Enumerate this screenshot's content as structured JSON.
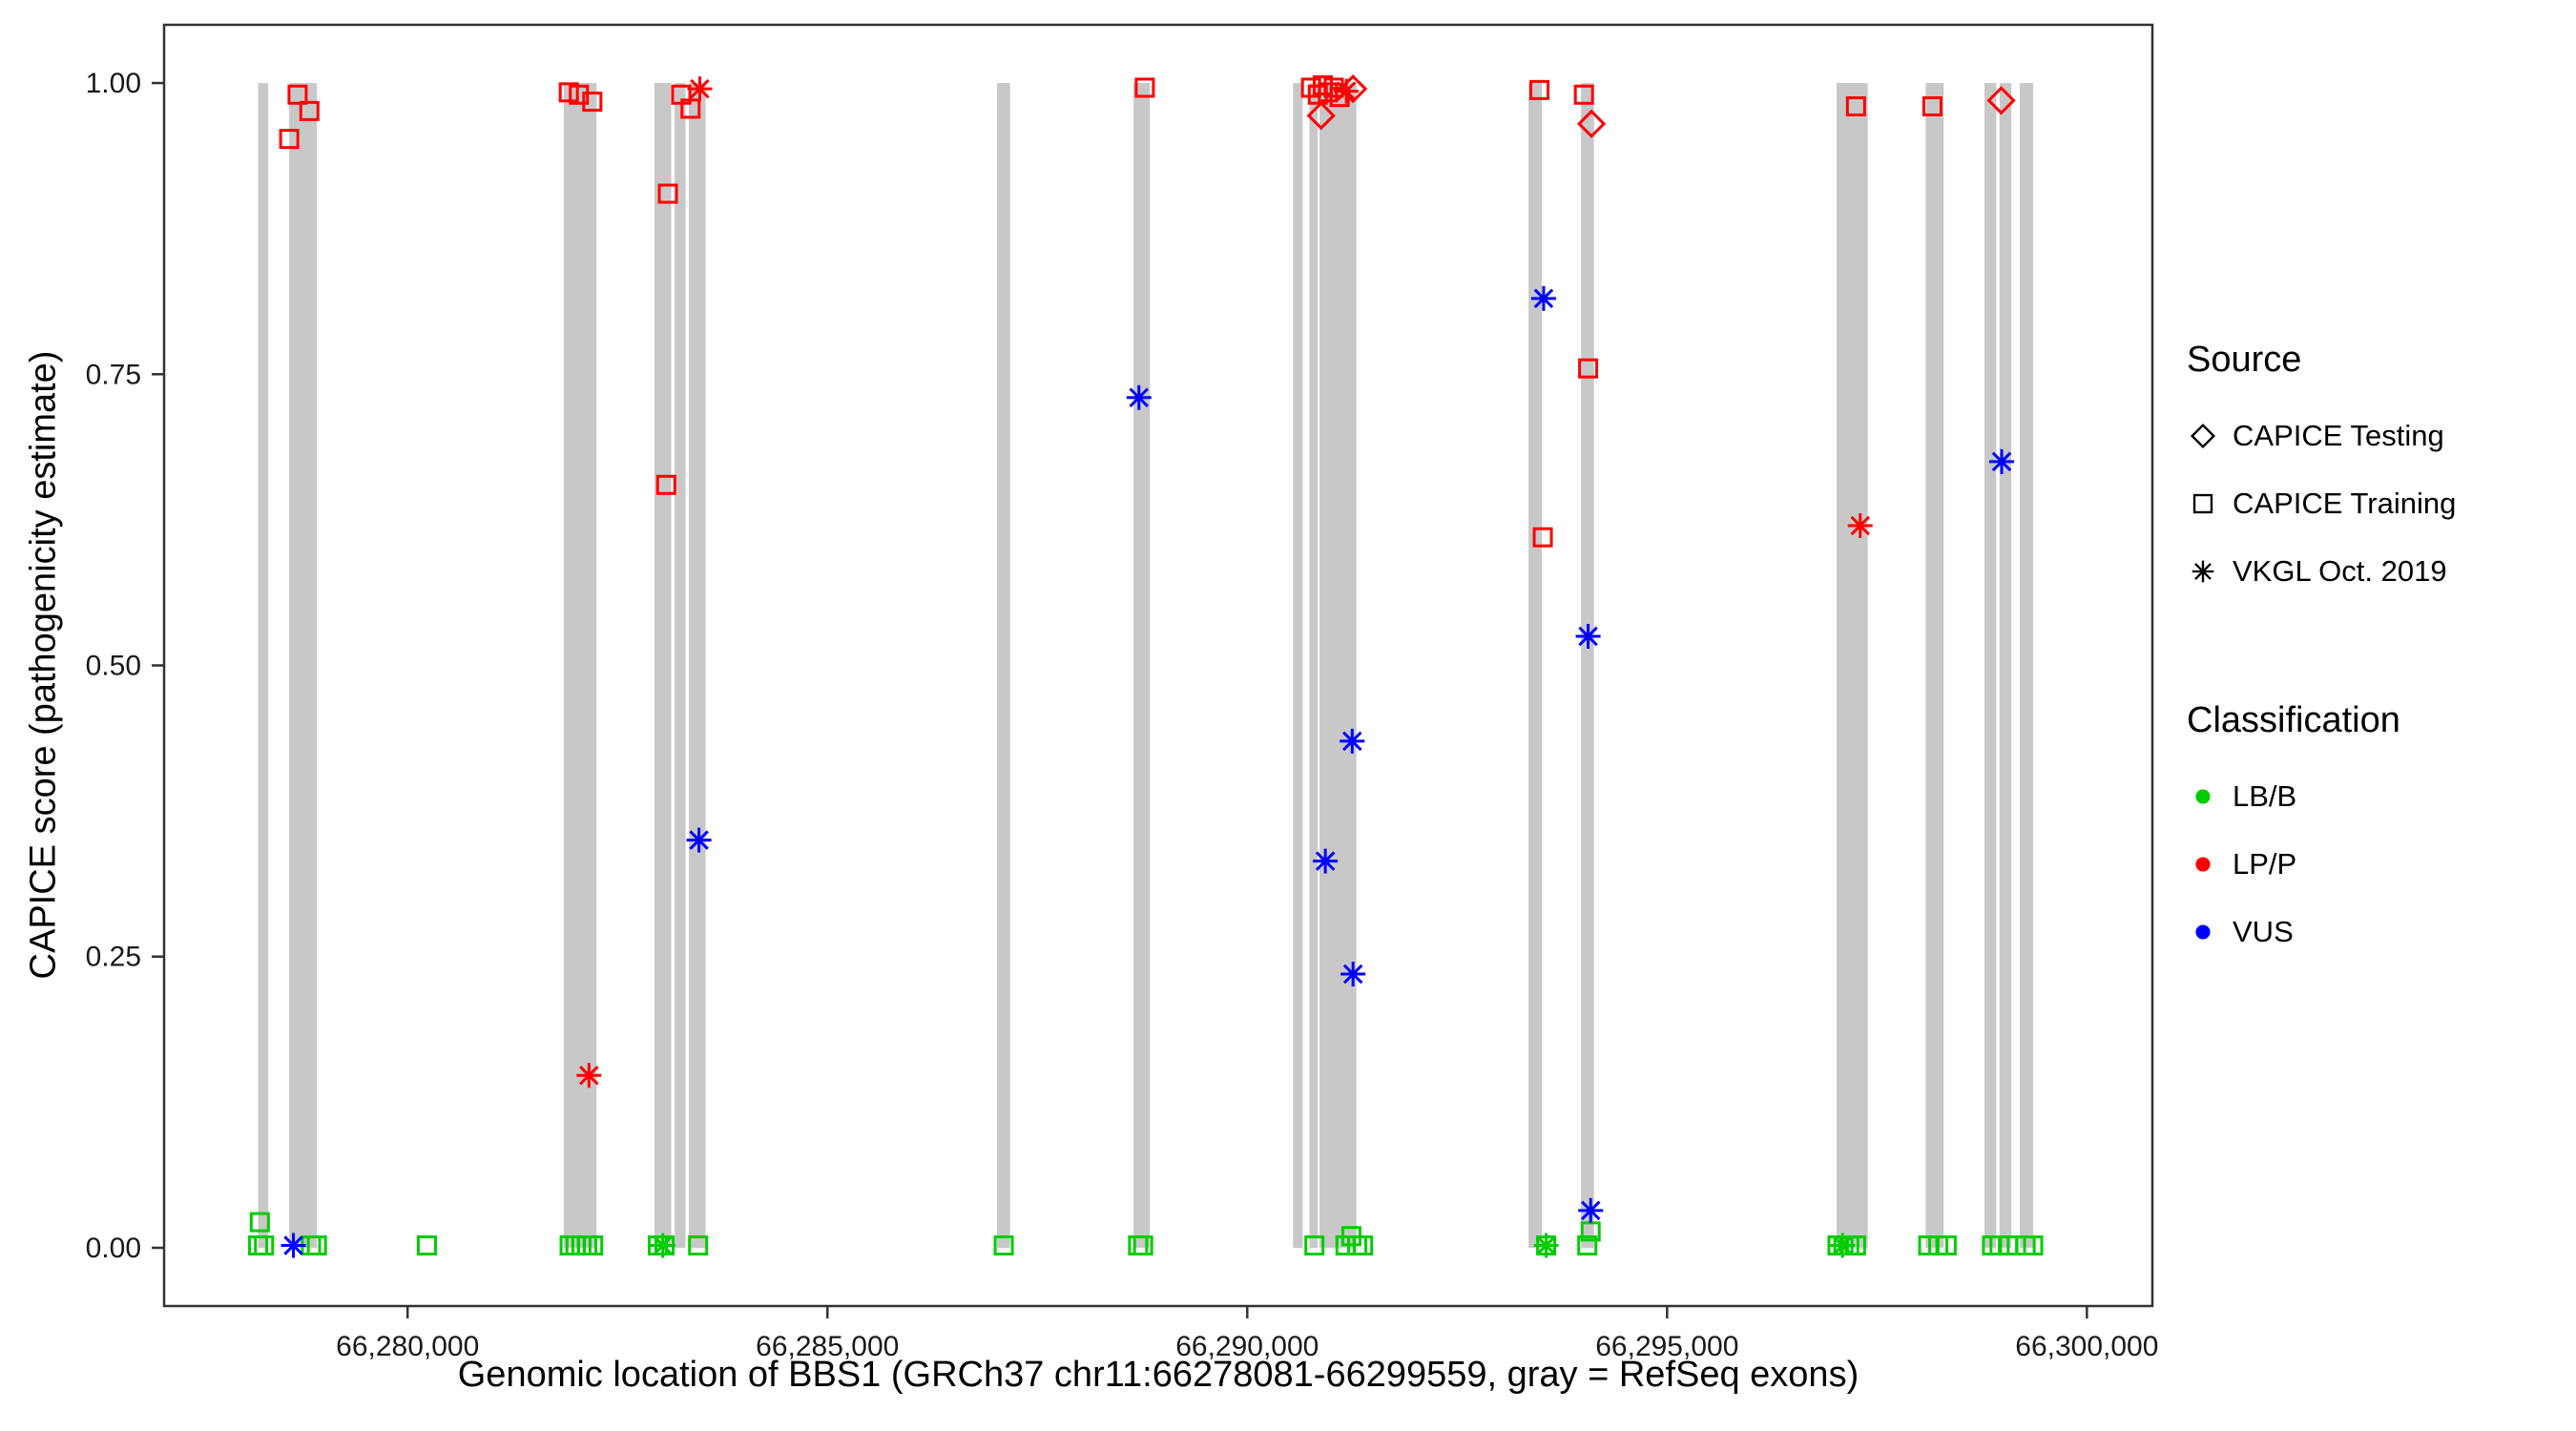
{
  "legend": {
    "source": {
      "title": "Source",
      "items": [
        {
          "label": "CAPICE Testing",
          "shape": "diamond"
        },
        {
          "label": "CAPICE Training",
          "shape": "square"
        },
        {
          "label": "VKGL Oct. 2019",
          "shape": "asterisk"
        }
      ]
    },
    "classification": {
      "title": "Classification",
      "items": [
        {
          "label": "LB/B",
          "color": "#00CD00"
        },
        {
          "label": "LP/P",
          "color": "#FF0000"
        },
        {
          "label": "VUS",
          "color": "#0000FF"
        }
      ]
    }
  },
  "style": {
    "exon_color": "#C8C8C8",
    "panel_border": "#333333",
    "tick_color": "#333333",
    "tick_label_color": "#1a1a1a",
    "background": "#FFFFFF"
  },
  "chart_data": {
    "type": "scatter",
    "title": "",
    "xlabel": "Genomic location of BBS1 (GRCh37 chr11:66278081-66299559, gray = RefSeq exons)",
    "ylabel": "CAPICE score (pathogenicity estimate)",
    "xlim": [
      66277100,
      66300780
    ],
    "ylim": [
      -0.05,
      1.05
    ],
    "x_ticks": [
      {
        "value": 66280000,
        "label": "66,280,000"
      },
      {
        "value": 66285000,
        "label": "66,285,000"
      },
      {
        "value": 66290000,
        "label": "66,290,000"
      },
      {
        "value": 66295000,
        "label": "66,295,000"
      },
      {
        "value": 66300000,
        "label": "66,300,000"
      }
    ],
    "y_ticks": [
      {
        "value": 0.0,
        "label": "0.00"
      },
      {
        "value": 0.25,
        "label": "0.25"
      },
      {
        "value": 0.5,
        "label": "0.50"
      },
      {
        "value": 0.75,
        "label": "0.75"
      },
      {
        "value": 1.0,
        "label": "1.00"
      }
    ],
    "exons_note": "gray rectangles span y=0 to y=1 and mark RefSeq exons",
    "exons": [
      [
        66278220,
        66278340
      ],
      [
        66278590,
        66278920
      ],
      [
        66281860,
        66282250
      ],
      [
        66282940,
        66283140
      ],
      [
        66283180,
        66283310
      ],
      [
        66283350,
        66283550
      ],
      [
        66287020,
        66287175
      ],
      [
        66288645,
        66288840
      ],
      [
        66290545,
        66290660
      ],
      [
        66290740,
        66290840
      ],
      [
        66290860,
        66291300
      ],
      [
        66293350,
        66293510
      ],
      [
        66293975,
        66294130
      ],
      [
        66297020,
        66297390
      ],
      [
        66298080,
        66298295
      ],
      [
        66298780,
        66298920
      ],
      [
        66298960,
        66299100
      ],
      [
        66299200,
        66299360
      ]
    ],
    "series": [
      {
        "name": "CAPICE Training - LB/B",
        "source": "CAPICE Training",
        "classification": "LB/B",
        "shape": "square",
        "color": "#00CD00",
        "points": [
          [
            66278240,
            0.022
          ],
          [
            66278220,
            0.002
          ],
          [
            66278290,
            0.002
          ],
          [
            66278850,
            0.002
          ],
          [
            66278920,
            0.002
          ],
          [
            66280230,
            0.002
          ],
          [
            66281930,
            0.002
          ],
          [
            66282000,
            0.002
          ],
          [
            66282070,
            0.002
          ],
          [
            66282140,
            0.002
          ],
          [
            66282210,
            0.002
          ],
          [
            66282980,
            0.002
          ],
          [
            66283060,
            0.002
          ],
          [
            66283460,
            0.002
          ],
          [
            66287100,
            0.002
          ],
          [
            66288700,
            0.002
          ],
          [
            66288760,
            0.002
          ],
          [
            66290800,
            0.002
          ],
          [
            66291170,
            0.002
          ],
          [
            66291240,
            0.01
          ],
          [
            66291310,
            0.002
          ],
          [
            66291380,
            0.002
          ],
          [
            66293560,
            0.002
          ],
          [
            66294050,
            0.002
          ],
          [
            66294090,
            0.014
          ],
          [
            66297030,
            0.002
          ],
          [
            66297100,
            0.002
          ],
          [
            66297170,
            0.002
          ],
          [
            66297250,
            0.002
          ],
          [
            66298110,
            0.002
          ],
          [
            66298230,
            0.002
          ],
          [
            66298330,
            0.002
          ],
          [
            66298870,
            0.002
          ],
          [
            66298960,
            0.002
          ],
          [
            66299060,
            0.002
          ],
          [
            66299270,
            0.002
          ],
          [
            66299360,
            0.002
          ]
        ]
      },
      {
        "name": "VKGL Oct. 2019 - LB/B",
        "source": "VKGL Oct. 2019",
        "classification": "LB/B",
        "shape": "asterisk",
        "color": "#00CD00",
        "points": [
          [
            66283040,
            0.002
          ],
          [
            66293560,
            0.002
          ],
          [
            66297090,
            0.002
          ]
        ]
      },
      {
        "name": "CAPICE Training - LP/P",
        "source": "CAPICE Training",
        "classification": "LP/P",
        "shape": "square",
        "color": "#FF0000",
        "points": [
          [
            66278590,
            0.952
          ],
          [
            66278690,
            0.99
          ],
          [
            66278830,
            0.976
          ],
          [
            66281920,
            0.992
          ],
          [
            66282040,
            0.99
          ],
          [
            66282200,
            0.984
          ],
          [
            66283080,
            0.655
          ],
          [
            66283100,
            0.905
          ],
          [
            66283260,
            0.99
          ],
          [
            66283370,
            0.978
          ],
          [
            66288780,
            0.996
          ],
          [
            66290760,
            0.996
          ],
          [
            66290840,
            0.99
          ],
          [
            66290900,
            0.998
          ],
          [
            66290960,
            0.992
          ],
          [
            66291030,
            0.996
          ],
          [
            66291100,
            0.988
          ],
          [
            66293480,
            0.994
          ],
          [
            66293520,
            0.61
          ],
          [
            66294010,
            0.99
          ],
          [
            66294060,
            0.755
          ],
          [
            66297250,
            0.98
          ],
          [
            66298160,
            0.98
          ]
        ]
      },
      {
        "name": "VKGL Oct. 2019 - LP/P",
        "source": "VKGL Oct. 2019",
        "classification": "LP/P",
        "shape": "asterisk",
        "color": "#FF0000",
        "points": [
          [
            66282160,
            0.148
          ],
          [
            66283480,
            0.995
          ],
          [
            66291180,
            0.993
          ],
          [
            66297300,
            0.62
          ]
        ]
      },
      {
        "name": "VKGL Oct. 2019 - VUS",
        "source": "VKGL Oct. 2019",
        "classification": "VUS",
        "shape": "asterisk",
        "color": "#0000FF",
        "points": [
          [
            66278640,
            0.002
          ],
          [
            66283470,
            0.35
          ],
          [
            66288710,
            0.73
          ],
          [
            66290930,
            0.332
          ],
          [
            66291250,
            0.435
          ],
          [
            66291260,
            0.235
          ],
          [
            66293530,
            0.815
          ],
          [
            66294060,
            0.525
          ],
          [
            66294090,
            0.032
          ],
          [
            66298985,
            0.675
          ]
        ]
      },
      {
        "name": "CAPICE Testing - LP/P",
        "source": "CAPICE Testing",
        "classification": "LP/P",
        "shape": "diamond",
        "color": "#FF0000",
        "points": [
          [
            66290880,
            0.972
          ],
          [
            66291260,
            0.995
          ],
          [
            66294100,
            0.965
          ],
          [
            66298980,
            0.985
          ]
        ]
      }
    ]
  }
}
